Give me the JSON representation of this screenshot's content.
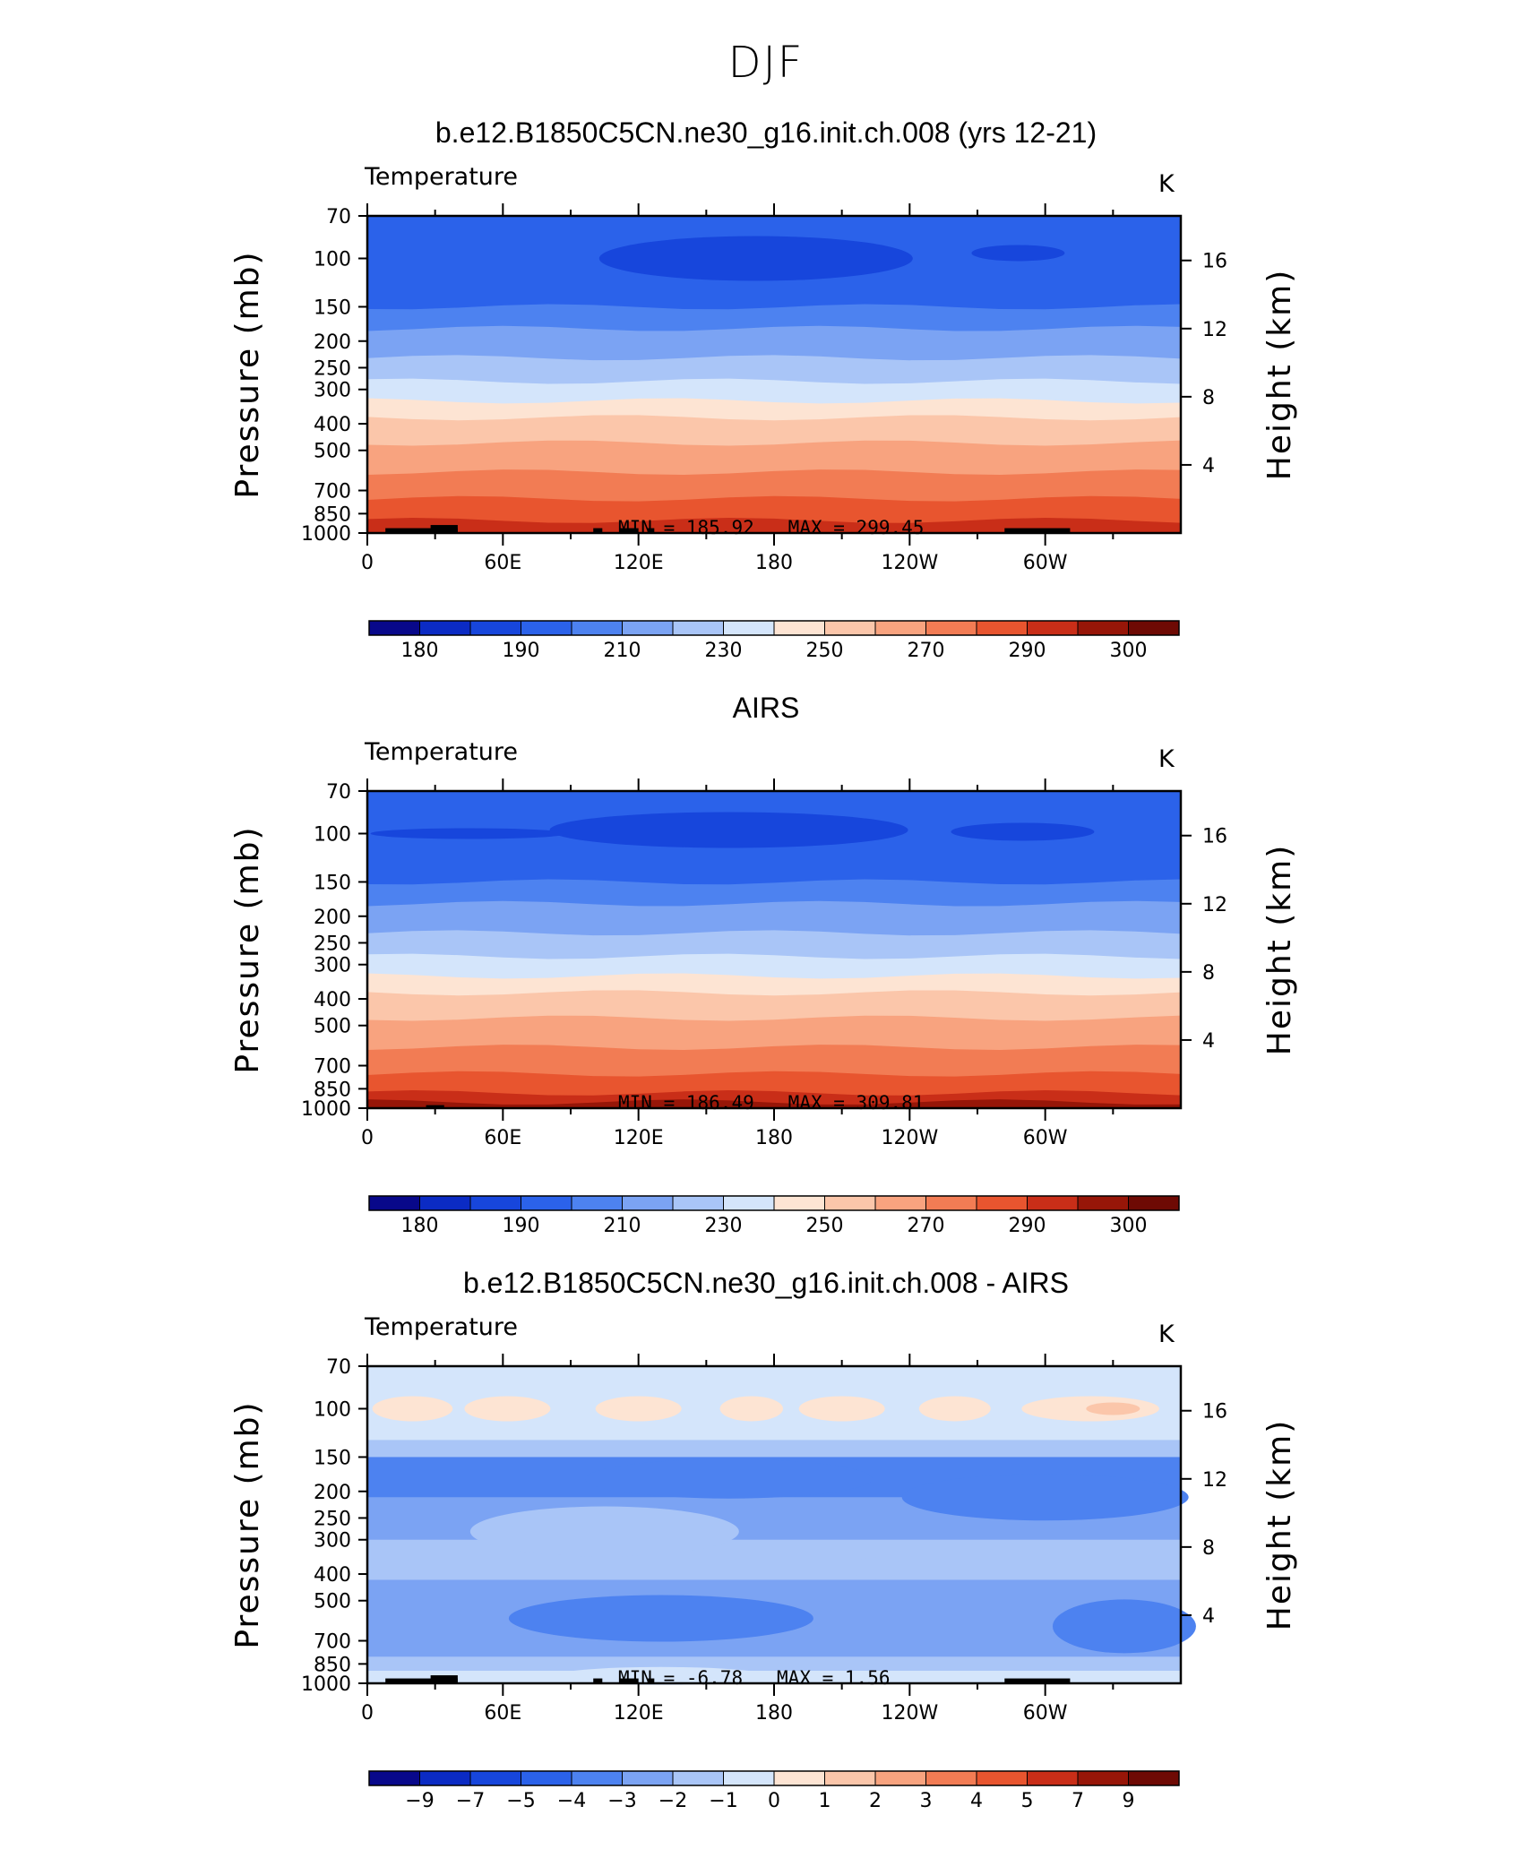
{
  "title": "DJF",
  "colors": {
    "palette": [
      "#08088a",
      "#0b2bc4",
      "#1746dc",
      "#2b62ea",
      "#4d82f0",
      "#7ba3f3",
      "#a9c5f7",
      "#d4e5fb",
      "#fde4d3",
      "#fbc6aa",
      "#f8a37f",
      "#f27c54",
      "#e8552f",
      "#c92e18",
      "#971608",
      "#6e0a04"
    ]
  },
  "panels": [
    {
      "title": "b.e12.B1850C5CN.ne30_g16.init.ch.008 (yrs 12-21)",
      "variable": "Temperature",
      "units": "K",
      "min_label": "MIN =",
      "min_value": "185.92",
      "max_label": "MAX =",
      "max_value": "299.45",
      "colorbar_labels": [
        "180",
        "190",
        "210",
        "230",
        "250",
        "270",
        "290",
        "300"
      ]
    },
    {
      "title": "AIRS",
      "variable": "Temperature",
      "units": "K",
      "min_label": "MIN =",
      "min_value": "186.49",
      "max_label": "MAX =",
      "max_value": "309.81",
      "colorbar_labels": [
        "180",
        "190",
        "210",
        "230",
        "250",
        "270",
        "290",
        "300"
      ]
    },
    {
      "title": "b.e12.B1850C5CN.ne30_g16.init.ch.008 - AIRS",
      "variable": "Temperature",
      "units": "K",
      "min_label": "MIN =",
      "min_value": "-6.78",
      "max_label": "MAX =",
      "max_value": "1.56",
      "colorbar_labels": [
        "−9",
        "−7",
        "−5",
        "−4",
        "−3",
        "−2",
        "−1",
        "0",
        "1",
        "2",
        "3",
        "4",
        "5",
        "7",
        "9"
      ]
    }
  ],
  "axes": {
    "ylabel_left": "Pressure (mb)",
    "ylabel_right": "Height (km)",
    "x_ticks": [
      "0",
      "60E",
      "120E",
      "180",
      "120W",
      "60W"
    ],
    "y_ticks_left": [
      "70",
      "100",
      "150",
      "200",
      "250",
      "300",
      "400",
      "500",
      "700",
      "850",
      "1000"
    ],
    "y_ticks_right": [
      "16",
      "12",
      "8",
      "4"
    ]
  },
  "chart_data": [
    {
      "type": "heatmap",
      "title": "b.e12.B1850C5CN.ne30_g16.init.ch.008 (yrs 12-21)",
      "subtitle": "Temperature",
      "units": "K",
      "xlabel": "",
      "ylabel": "Pressure (mb)",
      "ylabel_right": "Height (km)",
      "x_ticks": [
        "0",
        "60E",
        "120E",
        "180",
        "120W",
        "60W"
      ],
      "xlim": [
        0,
        360
      ],
      "ylim": [
        1000,
        70
      ],
      "y_scale": "log",
      "colorbar_levels": [
        180,
        190,
        210,
        230,
        250,
        270,
        290,
        300
      ],
      "min": 185.92,
      "max": 299.45
    },
    {
      "type": "heatmap",
      "title": "AIRS",
      "subtitle": "Temperature",
      "units": "K",
      "xlabel": "",
      "ylabel": "Pressure (mb)",
      "ylabel_right": "Height (km)",
      "x_ticks": [
        "0",
        "60E",
        "120E",
        "180",
        "120W",
        "60W"
      ],
      "xlim": [
        0,
        360
      ],
      "ylim": [
        1000,
        70
      ],
      "y_scale": "log",
      "colorbar_levels": [
        180,
        190,
        210,
        230,
        250,
        270,
        290,
        300
      ],
      "min": 186.49,
      "max": 309.81
    },
    {
      "type": "heatmap",
      "title": "b.e12.B1850C5CN.ne30_g16.init.ch.008 - AIRS",
      "subtitle": "Temperature",
      "units": "K",
      "xlabel": "",
      "ylabel": "Pressure (mb)",
      "ylabel_right": "Height (km)",
      "x_ticks": [
        "0",
        "60E",
        "120E",
        "180",
        "120W",
        "60W"
      ],
      "xlim": [
        0,
        360
      ],
      "ylim": [
        1000,
        70
      ],
      "y_scale": "log",
      "colorbar_levels": [
        -9,
        -7,
        -5,
        -4,
        -3,
        -2,
        -1,
        0,
        1,
        2,
        3,
        4,
        5,
        7,
        9
      ],
      "min": -6.78,
      "max": 1.56
    }
  ]
}
